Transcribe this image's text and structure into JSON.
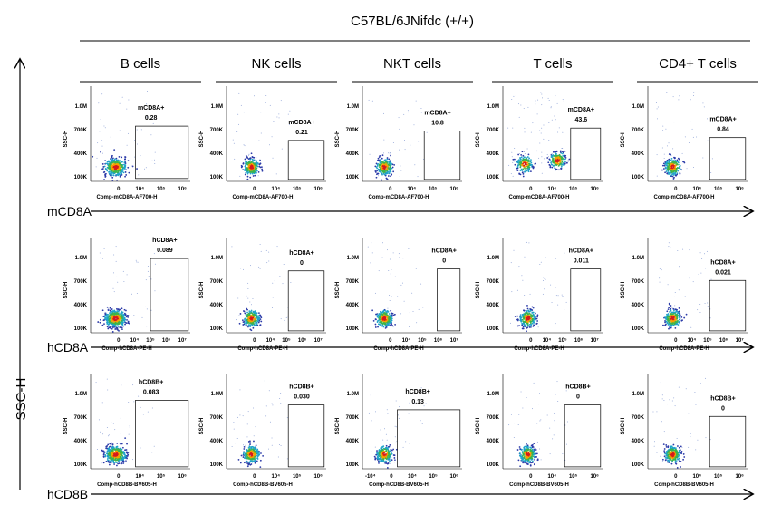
{
  "title": "C57BL/6JNifdc (+/+)",
  "axis_label": "SSC-H",
  "columns": [
    "B cells",
    "NK cells",
    "NKT cells",
    "T cells",
    "CD4+ T cells"
  ],
  "yticks": [
    "1.0M",
    "700K",
    "400K",
    "100K"
  ],
  "panel_ylabel": "SSC-H",
  "rows": [
    {
      "marker": "mCD8A",
      "panels": [
        {
          "gate": "mCD8A+",
          "value": "0.28",
          "xlabel": "Comp-mCD8A-AF700-H",
          "xticks": [
            "0",
            "10⁴",
            "10⁵",
            "10⁶"
          ]
        },
        {
          "gate": "mCD8A+",
          "value": "0.21",
          "xlabel": "Comp-mCD8A-AF700-H",
          "xticks": [
            "0",
            "10⁴",
            "10⁵",
            "10⁶"
          ]
        },
        {
          "gate": "mCD8A+",
          "value": "10.8",
          "xlabel": "Comp-mCD8A-AF700-H",
          "xticks": [
            "0",
            "10⁴",
            "10⁵",
            "10⁶"
          ]
        },
        {
          "gate": "mCD8A+",
          "value": "43.6",
          "xlabel": "Comp-mCD8A-AF700-H",
          "xticks": [
            "0",
            "10⁴",
            "10⁵",
            "10⁶"
          ]
        },
        {
          "gate": "mCD8A+",
          "value": "0.84",
          "xlabel": "Comp-mCD8A-AF700-H",
          "xticks": [
            "0",
            "10⁴",
            "10⁵",
            "10⁶"
          ]
        }
      ]
    },
    {
      "marker": "hCD8A",
      "panels": [
        {
          "gate": "hCD8A+",
          "value": "0.089",
          "xlabel": "Comp-hCD8A-PE-H",
          "xticks": [
            "0",
            "10⁴",
            "10⁵",
            "10⁶",
            "10⁷"
          ]
        },
        {
          "gate": "hCD8A+",
          "value": "0",
          "xlabel": "Comp-hCD8A-PE-H",
          "xticks": [
            "0",
            "10⁴",
            "10⁵",
            "10⁶",
            "10⁷"
          ]
        },
        {
          "gate": "hCD8A+",
          "value": "0",
          "xlabel": "Comp-hCD8A-PE-H",
          "xticks": [
            "0",
            "10⁴",
            "10⁵",
            "10⁶",
            "10⁷"
          ]
        },
        {
          "gate": "hCD8A+",
          "value": "0.011",
          "xlabel": "Comp-hCD8A-PE-H",
          "xticks": [
            "0",
            "10⁴",
            "10⁵",
            "10⁶",
            "10⁷"
          ]
        },
        {
          "gate": "hCD8A+",
          "value": "0.021",
          "xlabel": "Comp-hCD8A-PE-H",
          "xticks": [
            "0",
            "10⁴",
            "10⁵",
            "10⁶",
            "10⁷"
          ]
        }
      ]
    },
    {
      "marker": "hCD8B",
      "panels": [
        {
          "gate": "hCD8B+",
          "value": "0.083",
          "xlabel": "Comp-hCD8B-BV605-H",
          "xticks": [
            "0",
            "10⁴",
            "10⁵",
            "10⁶"
          ]
        },
        {
          "gate": "hCD8B+",
          "value": "0.030",
          "xlabel": "Comp-hCD8B-BV605-H",
          "xticks": [
            "0",
            "10⁴",
            "10⁵",
            "10⁶"
          ]
        },
        {
          "gate": "hCD8B+",
          "value": "0.13",
          "xlabel": "Comp-hCD8B-BV605-H",
          "xticks": [
            "-10⁴",
            "0",
            "10⁴",
            "10⁵",
            "10⁶"
          ]
        },
        {
          "gate": "hCD8B+",
          "value": "0",
          "xlabel": "Comp-hCD8B-BV605-H",
          "xticks": [
            "0",
            "10⁴",
            "10⁵",
            "10⁶"
          ]
        },
        {
          "gate": "hCD8B+",
          "value": "0",
          "xlabel": "Comp-hCD8B-BV605-H",
          "xticks": [
            "0",
            "10⁴",
            "10⁵",
            "10⁶"
          ]
        }
      ]
    }
  ]
}
